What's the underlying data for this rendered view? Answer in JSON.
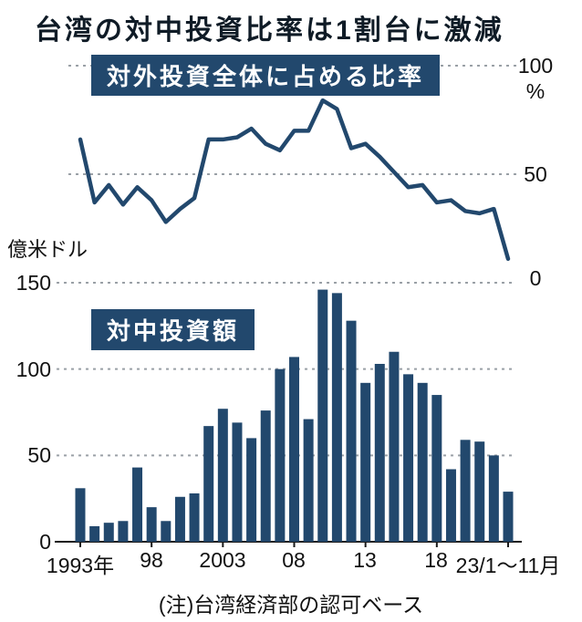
{
  "page": {
    "title": "台湾の対中投資比率は1割台に激減",
    "note": "(注)台湾経済部の認可ベース"
  },
  "colors": {
    "navy": "#22486d",
    "grid": "#9aa0a6",
    "axis": "#1a1a1a"
  },
  "chart_data": [
    {
      "type": "line",
      "title": "対外投資全体に占める比率",
      "unit": "%",
      "ylim": [
        0,
        100
      ],
      "yticks": [
        0,
        50,
        100
      ],
      "ytick_labels": [
        "0",
        "50",
        "100"
      ],
      "axis_side": "right",
      "grid": "dashed",
      "x": [
        1993,
        1994,
        1995,
        1996,
        1997,
        1998,
        1999,
        2000,
        2001,
        2002,
        2003,
        2004,
        2005,
        2006,
        2007,
        2008,
        2009,
        2010,
        2011,
        2012,
        2013,
        2014,
        2015,
        2016,
        2017,
        2018,
        2019,
        2020,
        2021,
        2022,
        2023
      ],
      "values": [
        66,
        37,
        45,
        36,
        44,
        38,
        28,
        34,
        39,
        66,
        66,
        67,
        71,
        64,
        61,
        70,
        70,
        84,
        80,
        62,
        64,
        58,
        51,
        44,
        45,
        37,
        38,
        33,
        32,
        34,
        11
      ]
    },
    {
      "type": "bar",
      "title": "対中投資額",
      "ylabel": "億米ドル",
      "ylim": [
        0,
        150
      ],
      "yticks": [
        0,
        50,
        100,
        150
      ],
      "ytick_labels": [
        "0",
        "50",
        "100",
        "150"
      ],
      "xtick_labels": [
        "1993年",
        "98",
        "2003",
        "08",
        "13",
        "18",
        "23/1～11月"
      ],
      "xtick_years": [
        1993,
        1998,
        2003,
        2008,
        2013,
        2018,
        2023
      ],
      "x": [
        1993,
        1994,
        1995,
        1996,
        1997,
        1998,
        1999,
        2000,
        2001,
        2002,
        2003,
        2004,
        2005,
        2006,
        2007,
        2008,
        2009,
        2010,
        2011,
        2012,
        2013,
        2014,
        2015,
        2016,
        2017,
        2018,
        2019,
        2020,
        2021,
        2022,
        2023
      ],
      "values": [
        31,
        9,
        11,
        12,
        43,
        20,
        12,
        26,
        28,
        67,
        77,
        69,
        60,
        76,
        100,
        107,
        71,
        146,
        144,
        128,
        92,
        103,
        110,
        97,
        92,
        85,
        42,
        59,
        58,
        50,
        29
      ]
    }
  ]
}
